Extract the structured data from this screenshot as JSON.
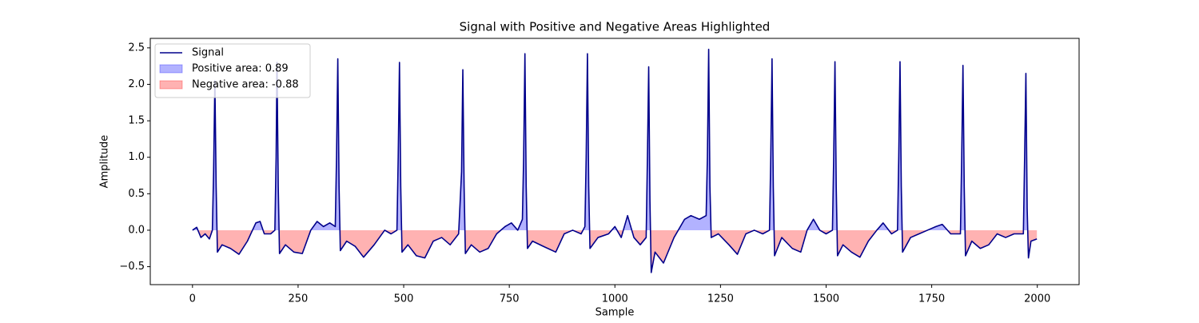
{
  "chart_data": {
    "type": "line",
    "title": "Signal with Positive and Negative Areas Highlighted",
    "xlabel": "Sample",
    "ylabel": "Amplitude",
    "x": [
      0,
      10,
      20,
      30,
      40,
      47,
      50,
      53,
      56,
      59,
      70,
      90,
      110,
      130,
      150,
      160,
      170,
      185,
      195,
      198,
      200,
      203,
      206,
      220,
      240,
      260,
      280,
      295,
      310,
      325,
      338,
      341,
      344,
      347,
      350,
      365,
      385,
      405,
      430,
      455,
      470,
      484,
      487,
      490,
      493,
      496,
      510,
      530,
      550,
      570,
      590,
      610,
      630,
      637,
      640,
      643,
      646,
      660,
      680,
      700,
      720,
      740,
      755,
      770,
      781,
      784,
      787,
      790,
      793,
      805,
      830,
      860,
      880,
      900,
      920,
      929,
      932,
      935,
      938,
      941,
      960,
      985,
      1000,
      1015,
      1030,
      1045,
      1060,
      1074,
      1077,
      1080,
      1083,
      1086,
      1095,
      1115,
      1140,
      1165,
      1180,
      1200,
      1216,
      1219,
      1222,
      1225,
      1228,
      1245,
      1270,
      1290,
      1310,
      1330,
      1350,
      1366,
      1369,
      1372,
      1375,
      1378,
      1395,
      1420,
      1440,
      1455,
      1470,
      1485,
      1500,
      1515,
      1518,
      1521,
      1524,
      1527,
      1540,
      1560,
      1580,
      1600,
      1620,
      1635,
      1655,
      1669,
      1672,
      1675,
      1678,
      1681,
      1700,
      1720,
      1740,
      1760,
      1775,
      1795,
      1818,
      1821,
      1824,
      1827,
      1830,
      1845,
      1865,
      1885,
      1905,
      1925,
      1945,
      1967,
      1970,
      1973,
      1976,
      1979,
      1985,
      1999
    ],
    "series": [
      {
        "name": "Signal",
        "color": "#00008b",
        "values": [
          0.0,
          0.04,
          -0.1,
          -0.05,
          -0.12,
          0.0,
          0.8,
          2.05,
          0.6,
          -0.3,
          -0.2,
          -0.25,
          -0.33,
          -0.15,
          0.1,
          0.12,
          -0.05,
          -0.05,
          0.0,
          1.0,
          2.3,
          0.6,
          -0.32,
          -0.2,
          -0.3,
          -0.32,
          0.0,
          0.12,
          0.05,
          0.1,
          0.05,
          1.0,
          2.35,
          0.6,
          -0.28,
          -0.15,
          -0.22,
          -0.37,
          -0.2,
          0.0,
          -0.05,
          0.0,
          1.0,
          2.3,
          0.6,
          -0.3,
          -0.2,
          -0.35,
          -0.38,
          -0.15,
          -0.1,
          -0.2,
          -0.05,
          0.8,
          2.2,
          0.6,
          -0.32,
          -0.2,
          -0.3,
          -0.25,
          -0.05,
          0.05,
          0.1,
          0.0,
          0.15,
          1.0,
          2.42,
          0.6,
          -0.25,
          -0.15,
          -0.22,
          -0.3,
          -0.05,
          0.0,
          -0.05,
          0.05,
          1.0,
          2.42,
          0.6,
          -0.25,
          -0.1,
          -0.05,
          0.05,
          -0.1,
          0.2,
          -0.1,
          -0.2,
          -0.1,
          1.0,
          2.24,
          0.4,
          -0.58,
          -0.3,
          -0.45,
          -0.1,
          0.15,
          0.2,
          0.15,
          0.2,
          1.0,
          2.48,
          0.6,
          -0.1,
          -0.05,
          -0.2,
          -0.33,
          -0.05,
          0.0,
          -0.05,
          0.0,
          1.0,
          2.35,
          0.6,
          -0.35,
          -0.1,
          -0.25,
          -0.3,
          0.0,
          0.15,
          0.0,
          -0.05,
          0.0,
          1.0,
          2.31,
          0.6,
          -0.35,
          -0.2,
          -0.3,
          -0.37,
          -0.15,
          0.0,
          0.1,
          -0.05,
          0.0,
          1.0,
          2.31,
          0.6,
          -0.3,
          -0.1,
          -0.05,
          0.0,
          0.05,
          0.08,
          -0.05,
          -0.05,
          1.0,
          2.26,
          0.6,
          -0.35,
          -0.15,
          -0.25,
          -0.2,
          -0.05,
          -0.1,
          -0.05,
          -0.05,
          1.0,
          2.15,
          0.3,
          -0.38,
          -0.15,
          -0.12
        ]
      }
    ],
    "fills": [
      {
        "name": "Positive area: 0.89",
        "color": "#0000ff",
        "opacity": 0.3,
        "side": "above"
      },
      {
        "name": "Negative area: -0.88",
        "color": "#ff0000",
        "opacity": 0.3,
        "side": "below"
      }
    ],
    "xlim": [
      -99.95,
      2098.95
    ],
    "xticks": [
      0,
      250,
      500,
      750,
      1000,
      1250,
      1500,
      1750,
      2000
    ],
    "ylim": [
      -0.746,
      2.63
    ],
    "yticks": [
      {
        "value": -0.5,
        "label": "−0.5"
      },
      {
        "value": 0,
        "label": "0.0"
      },
      0.5,
      {
        "value": 1,
        "label": "1.0"
      },
      1.5,
      {
        "value": 2,
        "label": "2.0"
      },
      2.5
    ],
    "legend": "upper left"
  }
}
